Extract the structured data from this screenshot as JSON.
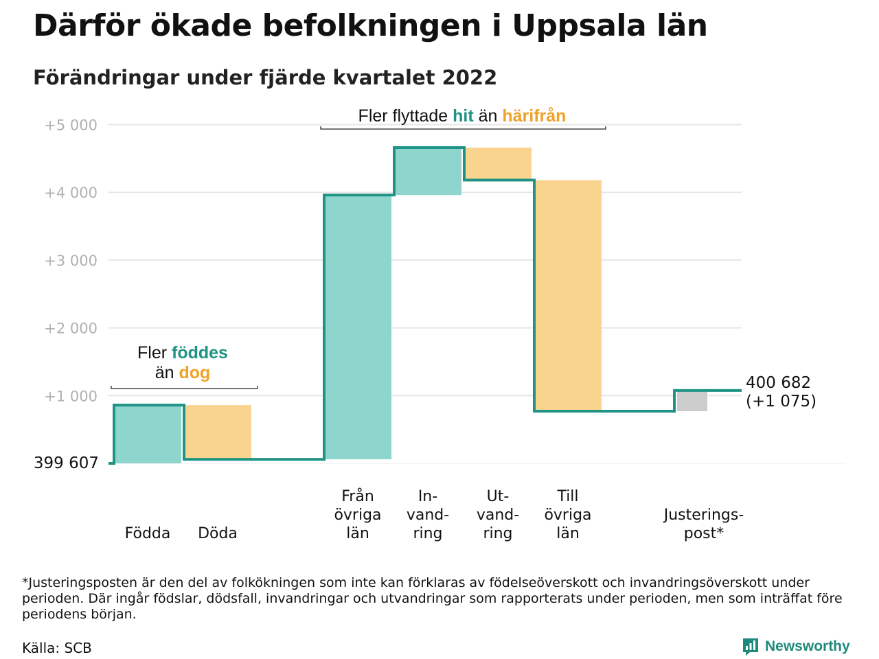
{
  "header": {
    "title": "Därför ökade befolkningen i Uppsala län",
    "subtitle": "Förändringar under fjärde kvartalet 2022"
  },
  "chart_data": {
    "type": "waterfall",
    "start_value": 399607,
    "start_label": "399 607",
    "end_label_line1": "400 682",
    "end_label_line2": "(+1 075)",
    "ylim": [
      0,
      5100
    ],
    "yticks": [
      {
        "value": 1000,
        "label": "+1 000"
      },
      {
        "value": 2000,
        "label": "+2 000"
      },
      {
        "value": 3000,
        "label": "+3 000"
      },
      {
        "value": 4000,
        "label": "+4 000"
      },
      {
        "value": 5000,
        "label": "+5 000"
      }
    ],
    "steps": [
      {
        "lines": [
          "Födda"
        ],
        "from": 0,
        "to": 860,
        "kind": "plus"
      },
      {
        "lines": [
          "Döda"
        ],
        "from": 860,
        "to": 60,
        "kind": "minus"
      },
      {
        "lines": [
          "Från",
          "övriga",
          "län"
        ],
        "from": 60,
        "to": 3960,
        "kind": "plus"
      },
      {
        "lines": [
          "In-",
          "vand-",
          "ring"
        ],
        "from": 3960,
        "to": 4660,
        "kind": "plus"
      },
      {
        "lines": [
          "Ut-",
          "vand-",
          "ring"
        ],
        "from": 4660,
        "to": 4180,
        "kind": "minus"
      },
      {
        "lines": [
          "Till",
          "övriga",
          "län"
        ],
        "from": 4180,
        "to": 770,
        "kind": "minus"
      },
      {
        "lines": [
          "Justerings-",
          "post*"
        ],
        "from": 770,
        "to": 1075,
        "kind": "adjust"
      }
    ],
    "annotations": {
      "births": {
        "line1_prefix": "Fler ",
        "line1_em": "föddes",
        "line2_prefix": "än ",
        "line2_em": "dog"
      },
      "migration": {
        "prefix": "Fler flyttade ",
        "em1": "hit",
        "middle": " än ",
        "em2": "härifrån"
      }
    },
    "colors": {
      "teal_line": "#1f9384",
      "teal_fill": "#8dd5cd",
      "orange_fill": "#f9d48f",
      "teal_text": "#1f9384",
      "orange_text": "#f0a228",
      "adjust_fill": "#cccccc",
      "grid": "#e6e6e6",
      "tick_text": "#b0b0b0"
    }
  },
  "footer": {
    "footnote": "*Justeringsposten är den del av folkökningen som inte kan förklaras av födelseöverskott och invandringsöverskott under perioden. Där ingår födslar, dödsfall, invandringar och utvandringar som rapporterats under perioden, men som inträffat före periodens början.",
    "source": "Källa: SCB",
    "brand": "Newsworthy",
    "brand_icon": "newsworthy-logo-icon"
  }
}
